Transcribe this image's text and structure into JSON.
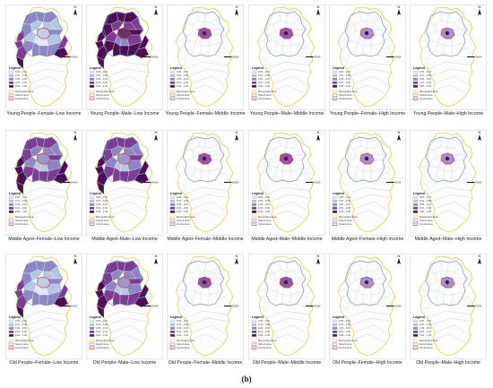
{
  "figure": {
    "caption": "(b)",
    "legend_title": "Legend",
    "legend_ranges": [
      "0.00 – 0.01",
      "0.01 – 0.05",
      "0.05 – 0.15",
      "0.15 – 0.30",
      "0.30 – 1.00"
    ],
    "legend_boundaries": [
      "Metropolitan Area",
      "Suburb Area",
      "Central Area"
    ],
    "north_label": "N",
    "scale_label": "0 5 10 km",
    "colors": {
      "class_1": "#dde6f2",
      "class_2": "#b5c6e2",
      "class_3": "#8a87c2",
      "class_4": "#7a3d92",
      "class_5": "#4a0f55",
      "metro_boundary": "#e8c84a",
      "suburb_boundary": "#7c93c6",
      "central_boundary": "#d03a3a"
    },
    "panels": [
      {
        "label": "Young People–Female–Low Income",
        "intensity": "low-wide"
      },
      {
        "label": "Young People–Male–Low Income",
        "intensity": "high-wide"
      },
      {
        "label": "Young People–Female–Middle Income",
        "intensity": "center"
      },
      {
        "label": "Young People–Male–Middle Income",
        "intensity": "center"
      },
      {
        "label": "Young People–Female–High Income",
        "intensity": "center-light"
      },
      {
        "label": "Young People–Male–High Income",
        "intensity": "center-light"
      },
      {
        "label": "Middle Aged–Female–Low Income",
        "intensity": "mid-wide"
      },
      {
        "label": "Middle Aged–Male–Low Income",
        "intensity": "mid-wide"
      },
      {
        "label": "Middle Aged–Female–Middle Income",
        "intensity": "center"
      },
      {
        "label": "Middle Aged–Male–Middle Income",
        "intensity": "center"
      },
      {
        "label": "Middle Aged–Female–High Income",
        "intensity": "center-light"
      },
      {
        "label": "Middle Aged–Male–High Income",
        "intensity": "center-light"
      },
      {
        "label": "Old People–Female–Low Income",
        "intensity": "low-wide"
      },
      {
        "label": "Old People–Male–Low Income",
        "intensity": "mid-wide"
      },
      {
        "label": "Old People–Female–Middle Income",
        "intensity": "center"
      },
      {
        "label": "Old People–Male–Middle Income",
        "intensity": "center"
      },
      {
        "label": "Old People–Female–High Income",
        "intensity": "center-light"
      },
      {
        "label": "Old People–Male–High Income",
        "intensity": "center-light"
      }
    ]
  }
}
